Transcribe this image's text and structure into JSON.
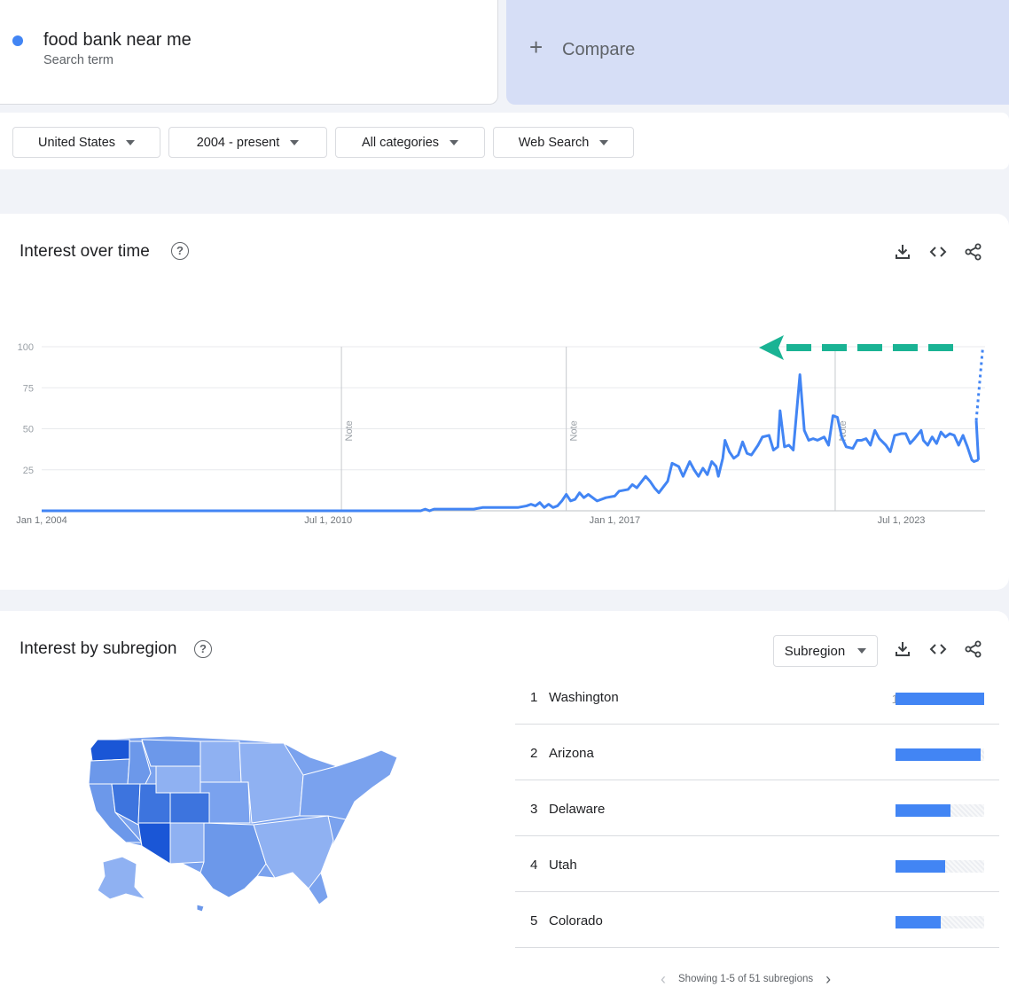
{
  "search_term": {
    "name": "food bank near me",
    "subtitle": "Search term",
    "color": "#4285f4"
  },
  "compare": {
    "label": "Compare",
    "icon": "plus-icon"
  },
  "filters": [
    {
      "label": "United States"
    },
    {
      "label": "2004 - present"
    },
    {
      "label": "All categories"
    },
    {
      "label": "Web Search"
    }
  ],
  "interest_over_time": {
    "title": "Interest over time",
    "icons": [
      "help-icon",
      "download-icon",
      "embed-icon",
      "share-icon"
    ],
    "note_label": "Note"
  },
  "chart_data": {
    "type": "line",
    "title": "Interest over time",
    "xlabel": "",
    "ylabel": "",
    "ylim": [
      0,
      100
    ],
    "y_ticks": [
      100,
      75,
      50,
      25
    ],
    "x_ticks": [
      "Jan 1, 2004",
      "Jul 1, 2010",
      "Jan 1, 2017",
      "Jul 1, 2023"
    ],
    "x_tick_years": [
      2004.0,
      2010.5,
      2017.0,
      2023.5
    ],
    "grid": true,
    "xlim": [
      2004.0,
      2025.4
    ],
    "notes_at": [
      2010.8,
      2015.9,
      2022.0
    ],
    "series": [
      {
        "color": "#4285f4",
        "points": [
          [
            2004.0,
            0
          ],
          [
            2011.0,
            0
          ],
          [
            2012.6,
            0
          ],
          [
            2012.7,
            1
          ],
          [
            2012.8,
            0
          ],
          [
            2012.9,
            1
          ],
          [
            2013.8,
            1
          ],
          [
            2014.0,
            2
          ],
          [
            2014.8,
            2
          ],
          [
            2015.0,
            3
          ],
          [
            2015.1,
            4
          ],
          [
            2015.2,
            3
          ],
          [
            2015.3,
            5
          ],
          [
            2015.4,
            2
          ],
          [
            2015.5,
            4
          ],
          [
            2015.6,
            2
          ],
          [
            2015.7,
            3
          ],
          [
            2015.8,
            6
          ],
          [
            2015.9,
            10
          ],
          [
            2016.0,
            6
          ],
          [
            2016.1,
            7
          ],
          [
            2016.2,
            11
          ],
          [
            2016.3,
            8
          ],
          [
            2016.4,
            10
          ],
          [
            2016.6,
            6
          ],
          [
            2016.8,
            8
          ],
          [
            2017.0,
            9
          ],
          [
            2017.1,
            12
          ],
          [
            2017.3,
            13
          ],
          [
            2017.4,
            16
          ],
          [
            2017.5,
            14
          ],
          [
            2017.7,
            21
          ],
          [
            2017.8,
            18
          ],
          [
            2017.9,
            14
          ],
          [
            2018.0,
            11
          ],
          [
            2018.2,
            18
          ],
          [
            2018.3,
            29
          ],
          [
            2018.45,
            27
          ],
          [
            2018.55,
            21
          ],
          [
            2018.7,
            30
          ],
          [
            2018.8,
            25
          ],
          [
            2018.9,
            21
          ],
          [
            2019.0,
            26
          ],
          [
            2019.1,
            22
          ],
          [
            2019.2,
            30
          ],
          [
            2019.3,
            27
          ],
          [
            2019.35,
            21
          ],
          [
            2019.45,
            32
          ],
          [
            2019.5,
            43
          ],
          [
            2019.6,
            36
          ],
          [
            2019.7,
            32
          ],
          [
            2019.8,
            34
          ],
          [
            2019.9,
            42
          ],
          [
            2020.0,
            35
          ],
          [
            2020.1,
            34
          ],
          [
            2020.25,
            40
          ],
          [
            2020.35,
            45
          ],
          [
            2020.5,
            46
          ],
          [
            2020.6,
            37
          ],
          [
            2020.7,
            39
          ],
          [
            2020.75,
            61
          ],
          [
            2020.85,
            39
          ],
          [
            2020.95,
            40
          ],
          [
            2021.05,
            37
          ],
          [
            2021.2,
            83
          ],
          [
            2021.3,
            49
          ],
          [
            2021.4,
            43
          ],
          [
            2021.5,
            44
          ],
          [
            2021.6,
            43
          ],
          [
            2021.75,
            45
          ],
          [
            2021.85,
            40
          ],
          [
            2021.95,
            58
          ],
          [
            2022.05,
            57
          ],
          [
            2022.15,
            45
          ],
          [
            2022.25,
            39
          ],
          [
            2022.4,
            38
          ],
          [
            2022.5,
            43
          ],
          [
            2022.6,
            43
          ],
          [
            2022.7,
            44
          ],
          [
            2022.8,
            40
          ],
          [
            2022.9,
            49
          ],
          [
            2023.0,
            44
          ],
          [
            2023.15,
            40
          ],
          [
            2023.25,
            36
          ],
          [
            2023.35,
            46
          ],
          [
            2023.5,
            47
          ],
          [
            2023.6,
            47
          ],
          [
            2023.7,
            41
          ],
          [
            2023.8,
            44
          ],
          [
            2023.95,
            49
          ],
          [
            2024.0,
            43
          ],
          [
            2024.1,
            40
          ],
          [
            2024.2,
            45
          ],
          [
            2024.3,
            41
          ],
          [
            2024.4,
            48
          ],
          [
            2024.5,
            45
          ],
          [
            2024.6,
            47
          ],
          [
            2024.7,
            46
          ],
          [
            2024.8,
            40
          ],
          [
            2024.9,
            46
          ],
          [
            2025.0,
            39
          ],
          [
            2025.1,
            31
          ],
          [
            2025.15,
            30
          ],
          [
            2025.25,
            31
          ]
        ]
      }
    ]
  },
  "interest_by_subregion": {
    "title": "Interest by subregion",
    "resolution_label": "Subregion",
    "icons": [
      "help-icon",
      "download-icon",
      "embed-icon",
      "share-icon"
    ],
    "rankings": [
      {
        "rank": "1",
        "name": "Washington",
        "value": 100
      },
      {
        "rank": "2",
        "name": "Arizona",
        "value": 96
      },
      {
        "rank": "3",
        "name": "Delaware",
        "value": 62
      },
      {
        "rank": "4",
        "name": "Utah",
        "value": 56
      },
      {
        "rank": "5",
        "name": "Colorado",
        "value": 51
      }
    ],
    "pager_label": "Showing 1-5 of 51 subregions"
  },
  "colors": {
    "map_light": "#8fb1f2",
    "map_mid": "#6c98ea",
    "map_dark": "#3d74de",
    "map_darkest": "#1a56d6",
    "annotation_arrow": "#1ab394"
  }
}
